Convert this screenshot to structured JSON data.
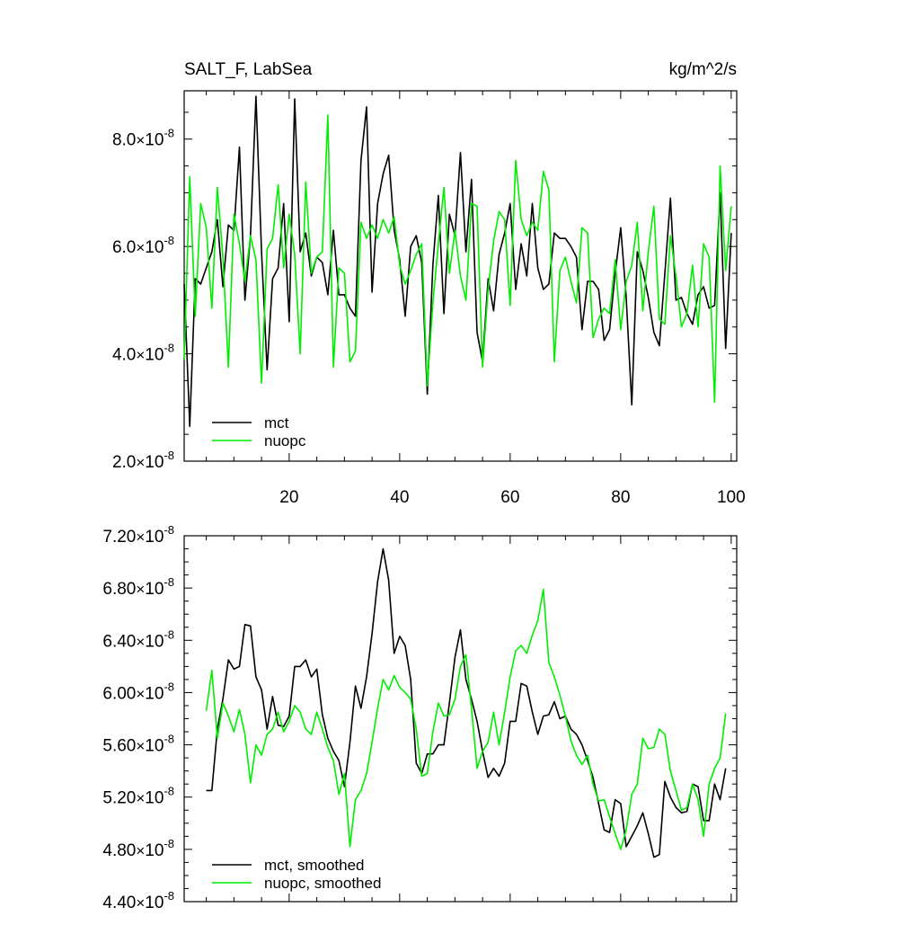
{
  "chart_data": [
    {
      "type": "line",
      "title": "SALT_F, LabSea",
      "units": "kg/m^2/s",
      "xlim": [
        1,
        101
      ],
      "ylim": [
        2e-08,
        8.9e-08
      ],
      "x_ticks": [
        20,
        40,
        60,
        80,
        100
      ],
      "x_tick_labels": [
        "20",
        "40",
        "60",
        "80",
        "100"
      ],
      "y_ticks": [
        2e-08,
        4e-08,
        6e-08,
        8e-08
      ],
      "y_tick_mantissa": [
        "2.0",
        "4.0",
        "6.0",
        "8.0"
      ],
      "y_tick_exponent": "-8",
      "legend_position": "bottom-left",
      "series": [
        {
          "name": "mct",
          "color": "#000000",
          "x_start": 1,
          "values": [
            5.3e-08,
            2.65e-08,
            5.4e-08,
            5.3e-08,
            5.6e-08,
            5.9e-08,
            6.5e-08,
            5.25e-08,
            6.4e-08,
            6.3e-08,
            7.85e-08,
            5e-08,
            6.2e-08,
            8.8e-08,
            5.9e-08,
            3.7e-08,
            5.4e-08,
            5.6e-08,
            6.8e-08,
            4.6e-08,
            8.75e-08,
            5.9e-08,
            6.25e-08,
            5.45e-08,
            5.8e-08,
            5.7e-08,
            5.1e-08,
            6.3e-08,
            5.1e-08,
            5.1e-08,
            4.85e-08,
            4.7e-08,
            7.6e-08,
            8.6e-08,
            5.15e-08,
            6.8e-08,
            7.35e-08,
            7.7e-08,
            6.3e-08,
            5.75e-08,
            4.7e-08,
            6e-08,
            6.2e-08,
            5.7e-08,
            3.25e-08,
            5.65e-08,
            6.95e-08,
            4.75e-08,
            6.6e-08,
            6.2e-08,
            7.75e-08,
            5.9e-08,
            7.25e-08,
            4.4e-08,
            3.85e-08,
            5.4e-08,
            4.8e-08,
            5.85e-08,
            6.25e-08,
            6.8e-08,
            5.2e-08,
            6.05e-08,
            5.45e-08,
            6.8e-08,
            5.6e-08,
            5.2e-08,
            5.3e-08,
            6.25e-08,
            6.15e-08,
            6.15e-08,
            6e-08,
            5.8e-08,
            4.45e-08,
            5.35e-08,
            5.35e-08,
            5.2e-08,
            4.25e-08,
            4.45e-08,
            5.5e-08,
            6.35e-08,
            5.05e-08,
            3.05e-08,
            5.9e-08,
            5.55e-08,
            5.05e-08,
            4.4e-08,
            4.15e-08,
            5.5e-08,
            6.9e-08,
            5e-08,
            5.05e-08,
            4.75e-08,
            4.55e-08,
            5.1e-08,
            5.25e-08,
            4.85e-08,
            4.9e-08,
            7e-08,
            4.1e-08,
            6.25e-08
          ]
        },
        {
          "name": "nuopc",
          "color": "#00ee00",
          "x_start": 1,
          "values": [
            3.9e-08,
            7.3e-08,
            4.7e-08,
            6.8e-08,
            6.35e-08,
            4.85e-08,
            7.1e-08,
            5.8e-08,
            3.75e-08,
            6.6e-08,
            6.05e-08,
            5.35e-08,
            6.2e-08,
            5.75e-08,
            3.45e-08,
            5.95e-08,
            6.15e-08,
            7.15e-08,
            5.6e-08,
            6.6e-08,
            5.85e-08,
            4e-08,
            7.2e-08,
            5.5e-08,
            5.8e-08,
            5.9e-08,
            8.45e-08,
            3.75e-08,
            5.6e-08,
            5.5e-08,
            3.85e-08,
            4.05e-08,
            6.45e-08,
            6.15e-08,
            6.4e-08,
            6.15e-08,
            6.5e-08,
            6.25e-08,
            6.55e-08,
            5.65e-08,
            5.3e-08,
            5.55e-08,
            5.85e-08,
            6.05e-08,
            3.4e-08,
            4.95e-08,
            6.05e-08,
            7.1e-08,
            5.5e-08,
            6.3e-08,
            5.45e-08,
            5e-08,
            6.8e-08,
            6.75e-08,
            3.75e-08,
            5.2e-08,
            6.1e-08,
            6.65e-08,
            6.5e-08,
            4.9e-08,
            7.6e-08,
            6.5e-08,
            6.2e-08,
            6.45e-08,
            6.3e-08,
            7.4e-08,
            7.05e-08,
            3.85e-08,
            5.55e-08,
            5.8e-08,
            5.35e-08,
            4.95e-08,
            6.35e-08,
            6.25e-08,
            4.3e-08,
            4.65e-08,
            4.85e-08,
            4.75e-08,
            5.75e-08,
            4.45e-08,
            5.35e-08,
            5.65e-08,
            6.45e-08,
            4.8e-08,
            5.9e-08,
            6.75e-08,
            4.65e-08,
            4.55e-08,
            6.2e-08,
            5.45e-08,
            4.5e-08,
            4.75e-08,
            5.65e-08,
            4.5e-08,
            6.05e-08,
            5.8e-08,
            3.1e-08,
            7.5e-08,
            5.55e-08,
            6.75e-08
          ]
        }
      ]
    },
    {
      "type": "line",
      "xlim": [
        1,
        101
      ],
      "ylim": [
        4.4e-08,
        7.2e-08
      ],
      "x_ticks": [
        20,
        40,
        60,
        80,
        100
      ],
      "y_ticks": [
        4.4e-08,
        4.8e-08,
        5.2e-08,
        5.6e-08,
        6e-08,
        6.4e-08,
        6.8e-08,
        7.2e-08
      ],
      "y_tick_mantissa": [
        "4.40",
        "4.80",
        "5.20",
        "5.60",
        "6.00",
        "6.40",
        "6.80",
        "7.20"
      ],
      "y_tick_exponent": "-8",
      "legend_position": "bottom-left",
      "series": [
        {
          "name": "mct, smoothed",
          "color": "#000000",
          "x_start": 5,
          "values": [
            5.25e-08,
            5.25e-08,
            5.72e-08,
            5.95e-08,
            6.25e-08,
            6.18e-08,
            6.2e-08,
            6.52e-08,
            6.51e-08,
            6.12e-08,
            6.02e-08,
            5.72e-08,
            5.97e-08,
            5.75e-08,
            5.74e-08,
            5.82e-08,
            6.2e-08,
            6.2e-08,
            6.25e-08,
            6.12e-08,
            6.18e-08,
            5.83e-08,
            5.65e-08,
            5.55e-08,
            5.48e-08,
            5.28e-08,
            5.62e-08,
            6.05e-08,
            5.88e-08,
            6.12e-08,
            6.45e-08,
            6.85e-08,
            7.1e-08,
            6.86e-08,
            6.3e-08,
            6.43e-08,
            6.36e-08,
            6.1e-08,
            5.46e-08,
            5.38e-08,
            5.53e-08,
            5.53e-08,
            5.6e-08,
            5.6e-08,
            5.92e-08,
            6.27e-08,
            6.48e-08,
            6.1e-08,
            5.95e-08,
            5.78e-08,
            5.55e-08,
            5.35e-08,
            5.42e-08,
            5.36e-08,
            5.46e-08,
            5.78e-08,
            5.78e-08,
            6.07e-08,
            6.05e-08,
            5.85e-08,
            5.68e-08,
            5.82e-08,
            5.83e-08,
            5.93e-08,
            5.8e-08,
            5.82e-08,
            5.72e-08,
            5.68e-08,
            5.6e-08,
            5.48e-08,
            5.35e-08,
            5.15e-08,
            4.95e-08,
            4.93e-08,
            5.18e-08,
            5.15e-08,
            4.82e-08,
            4.9e-08,
            4.98e-08,
            5.08e-08,
            4.92e-08,
            4.74e-08,
            4.76e-08,
            5.32e-08,
            5.2e-08,
            5.12e-08,
            5.08e-08,
            5.09e-08,
            5.3e-08,
            5.28e-08,
            5.02e-08,
            5.02e-08,
            5.3e-08,
            5.18e-08,
            5.42e-08
          ]
        },
        {
          "name": "nuopc, smoothed",
          "color": "#00ee00",
          "x_start": 5,
          "values": [
            5.86e-08,
            6.17e-08,
            5.65e-08,
            5.92e-08,
            5.82e-08,
            5.7e-08,
            5.87e-08,
            5.68e-08,
            5.31e-08,
            5.6e-08,
            5.52e-08,
            5.68e-08,
            5.72e-08,
            5.85e-08,
            5.7e-08,
            5.78e-08,
            5.9e-08,
            5.85e-08,
            5.72e-08,
            5.68e-08,
            5.85e-08,
            5.72e-08,
            5.58e-08,
            5.48e-08,
            5.22e-08,
            5.38e-08,
            4.82e-08,
            5.18e-08,
            5.25e-08,
            5.38e-08,
            5.62e-08,
            5.88e-08,
            6.1e-08,
            6.02e-08,
            6.13e-08,
            6.04e-08,
            6e-08,
            5.95e-08,
            5.72e-08,
            5.36e-08,
            5.38e-08,
            5.7e-08,
            5.92e-08,
            5.82e-08,
            5.83e-08,
            5.95e-08,
            6.2e-08,
            6.29e-08,
            5.88e-08,
            5.42e-08,
            5.55e-08,
            5.62e-08,
            5.85e-08,
            5.6e-08,
            5.85e-08,
            6.12e-08,
            6.32e-08,
            6.36e-08,
            6.3e-08,
            6.44e-08,
            6.55e-08,
            6.79e-08,
            6.23e-08,
            6.12e-08,
            5.98e-08,
            5.82e-08,
            5.63e-08,
            5.52e-08,
            5.45e-08,
            5.52e-08,
            5.3e-08,
            5.17e-08,
            5.18e-08,
            5.05e-08,
            4.92e-08,
            4.8e-08,
            4.95e-08,
            5.22e-08,
            5.3e-08,
            5.65e-08,
            5.57e-08,
            5.58e-08,
            5.72e-08,
            5.68e-08,
            5.4e-08,
            5.25e-08,
            5.1e-08,
            5.12e-08,
            5.3e-08,
            5.18e-08,
            4.9e-08,
            5.3e-08,
            5.42e-08,
            5.5e-08,
            5.84e-08
          ]
        }
      ]
    }
  ]
}
